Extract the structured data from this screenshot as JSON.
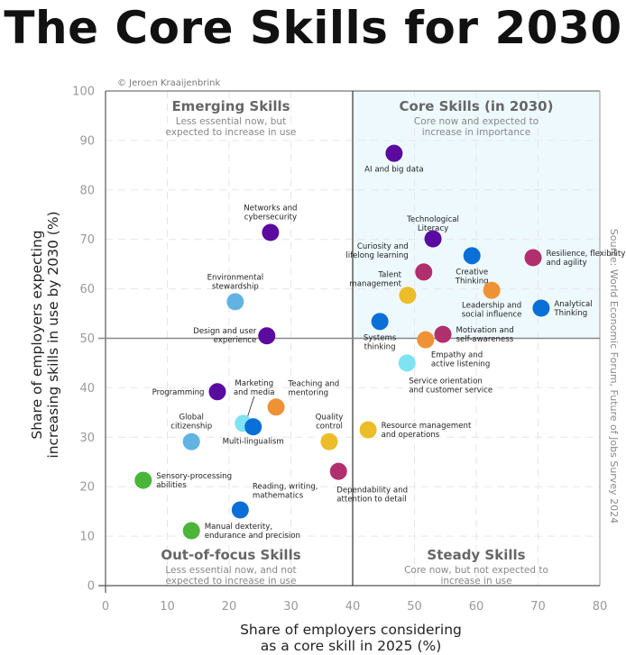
{
  "title": "The Core Skills for 2030",
  "credit": "© Jeroen Kraaijenbrink",
  "source": "Source: World Economic Forum, Future of Jobs Survey 2024",
  "colors": {
    "purple": "#5b0aa0",
    "blue": "#0a6fd6",
    "lightblue": "#62b3e3",
    "cyan": "#7ee3f3",
    "magenta": "#b0306e",
    "orange": "#ef9236",
    "yellow": "#ecbd28",
    "green": "#4bb53a",
    "core_bg": "#eef9fd"
  },
  "quadrants": [
    {
      "id": "emerging",
      "title": "Emerging Skills",
      "subtitle": [
        "Less essential now, but",
        "expected to increase in use"
      ]
    },
    {
      "id": "core",
      "title": "Core Skills (in 2030)",
      "subtitle": [
        "Core now and expected to",
        "increase in importance"
      ]
    },
    {
      "id": "outfocus",
      "title": "Out-of-focus Skills",
      "subtitle": [
        "Less essential now, and not",
        "expected to increase in use"
      ]
    },
    {
      "id": "steady",
      "title": "Steady Skills",
      "subtitle": [
        "Core now, but not expected to",
        "increase in use"
      ]
    }
  ],
  "chart_data": {
    "type": "scatter",
    "title": "The Core Skills for 2030",
    "xlabel": "Share of employers considering as a core skill in 2025 (%)",
    "xlabel_lines": [
      "Share of employers considering",
      "as a core skill in 2025 (%)"
    ],
    "ylabel": "Share of employers expecting increasing skills in use by 2030 (%)",
    "ylabel_lines": [
      "Share of employers expecting",
      "increasing skills in use by 2030 (%)"
    ],
    "xlim": [
      0,
      80
    ],
    "ylim": [
      0,
      100
    ],
    "xticks": [
      0,
      10,
      20,
      30,
      40,
      50,
      60,
      70,
      80
    ],
    "yticks": [
      0,
      10,
      20,
      30,
      40,
      50,
      60,
      70,
      80,
      90,
      100
    ],
    "divider_x": 40,
    "divider_y": 50,
    "grid": true,
    "points": [
      {
        "name": "AI and big data",
        "lines": [
          "AI and big data"
        ],
        "x": 46.7,
        "y": 87.4,
        "color": "purple",
        "anchor": "below"
      },
      {
        "name": "Networks and cybersecurity",
        "lines": [
          "Networks and",
          "cybersecurity"
        ],
        "x": 26.7,
        "y": 71.4,
        "color": "purple",
        "anchor": "above"
      },
      {
        "name": "Technological Literacy",
        "lines": [
          "Technological",
          "Literacy"
        ],
        "x": 53.0,
        "y": 70.1,
        "color": "purple",
        "anchor": "above"
      },
      {
        "name": "Creative Thinking",
        "lines": [
          "Creative",
          "Thinking"
        ],
        "x": 59.3,
        "y": 66.7,
        "color": "blue",
        "anchor": "below"
      },
      {
        "name": "Resilience, flexibility and agility",
        "lines": [
          "Resilience, flexibility",
          "and agility"
        ],
        "x": 69.2,
        "y": 66.3,
        "color": "magenta",
        "anchor": "right"
      },
      {
        "name": "Curiosity and lifelong learning",
        "lines": [
          "Curiosity and",
          "lifelong learning"
        ],
        "x": 51.5,
        "y": 63.4,
        "color": "magenta",
        "anchor": "above-left"
      },
      {
        "name": "Environmental stewardship",
        "lines": [
          "Environmental",
          "stewardship"
        ],
        "x": 21.0,
        "y": 57.4,
        "color": "lightblue",
        "anchor": "above"
      },
      {
        "name": "Talent management",
        "lines": [
          "Talent",
          "management"
        ],
        "x": 48.9,
        "y": 58.7,
        "color": "yellow",
        "anchor": "above-left"
      },
      {
        "name": "Leadership and social influence",
        "lines": [
          "Leadership and",
          "social influence"
        ],
        "x": 62.5,
        "y": 59.7,
        "color": "orange",
        "anchor": "below"
      },
      {
        "name": "Analytical Thinking",
        "lines": [
          "Analytical",
          "Thinking"
        ],
        "x": 70.5,
        "y": 56.1,
        "color": "blue",
        "anchor": "right"
      },
      {
        "name": "Systems thinking",
        "lines": [
          "Systems",
          "thinking"
        ],
        "x": 44.4,
        "y": 53.4,
        "color": "blue",
        "anchor": "below"
      },
      {
        "name": "Design and user experience",
        "lines": [
          "Design and user",
          "experience"
        ],
        "x": 26.1,
        "y": 50.5,
        "color": "purple",
        "anchor": "left"
      },
      {
        "name": "Motivation and self-awareness",
        "lines": [
          "Motivation and",
          "self-awareness"
        ],
        "x": 54.6,
        "y": 50.8,
        "color": "magenta",
        "anchor": "right"
      },
      {
        "name": "Empathy and active listening",
        "lines": [
          "Empathy and",
          "active listening"
        ],
        "x": 51.8,
        "y": 49.7,
        "color": "orange",
        "anchor": "below-right"
      },
      {
        "name": "Service orientation and customer service",
        "lines": [
          "Service orientation",
          "and customer service"
        ],
        "x": 48.8,
        "y": 45.0,
        "color": "cyan",
        "anchor": "below-right"
      },
      {
        "name": "Programming",
        "lines": [
          "Programming"
        ],
        "x": 18.1,
        "y": 39.2,
        "color": "purple",
        "anchor": "left"
      },
      {
        "name": "Teaching and mentoring",
        "lines": [
          "Teaching and",
          "mentoring"
        ],
        "x": 27.6,
        "y": 36.1,
        "color": "orange",
        "anchor": "above-right"
      },
      {
        "name": "Marketing and media",
        "lines": [
          "Marketing",
          "and media"
        ],
        "x": 22.3,
        "y": 32.8,
        "color": "cyan",
        "anchor": "leader"
      },
      {
        "name": "Multi-lingualism",
        "lines": [
          "Multi-lingualism"
        ],
        "x": 23.9,
        "y": 32.1,
        "color": "blue",
        "anchor": "below"
      },
      {
        "name": "Global citizenship",
        "lines": [
          "Global",
          "citizenship"
        ],
        "x": 13.9,
        "y": 29.1,
        "color": "lightblue",
        "anchor": "above"
      },
      {
        "name": "Quality control",
        "lines": [
          "Quality",
          "control"
        ],
        "x": 36.2,
        "y": 29.1,
        "color": "yellow",
        "anchor": "above"
      },
      {
        "name": "Resource management and operations",
        "lines": [
          "Resource management",
          "and operations"
        ],
        "x": 42.5,
        "y": 31.5,
        "color": "yellow",
        "anchor": "right"
      },
      {
        "name": "Dependability and attention to detail",
        "lines": [
          "Dependability and",
          "attention to detail"
        ],
        "x": 37.7,
        "y": 23.1,
        "color": "magenta",
        "anchor": "below-right"
      },
      {
        "name": "Sensory-processing abilities",
        "lines": [
          "Sensory-processing",
          "abilities"
        ],
        "x": 6.1,
        "y": 21.3,
        "color": "green",
        "anchor": "right"
      },
      {
        "name": "Reading, writing, mathematics",
        "lines": [
          "Reading, writing,",
          "mathematics"
        ],
        "x": 21.8,
        "y": 15.3,
        "color": "blue",
        "anchor": "above-right"
      },
      {
        "name": "Manual dexterity, endurance and precision",
        "lines": [
          "Manual dexterity,",
          "endurance and precision"
        ],
        "x": 13.9,
        "y": 11.1,
        "color": "green",
        "anchor": "right"
      }
    ]
  }
}
